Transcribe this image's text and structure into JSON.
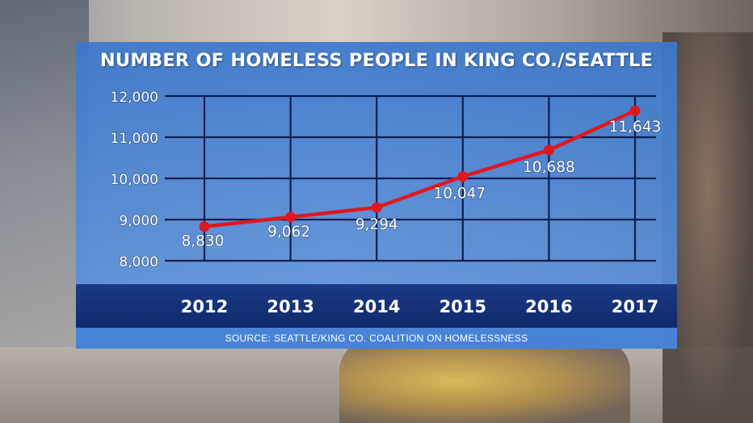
{
  "chart_data": {
    "type": "line",
    "title": "NUMBER OF HOMELESS PEOPLE IN KING CO./SEATTLE",
    "source": "SOURCE: SEATTLE/KING CO. COALITION ON HOMELESSNESS",
    "x": [
      "2012",
      "2013",
      "2014",
      "2015",
      "2016",
      "2017"
    ],
    "values": [
      8830,
      9062,
      9294,
      10047,
      10688,
      11643
    ],
    "value_labels": [
      "8,830",
      "9,062",
      "9,294",
      "10,047",
      "10,688",
      "11,643"
    ],
    "y_ticks": [
      8000,
      9000,
      10000,
      11000,
      12000
    ],
    "y_tick_labels": [
      "8,000",
      "9,000",
      "10,000",
      "11,000",
      "12,000"
    ],
    "ylim": [
      8000,
      12000
    ],
    "grid": true,
    "legend": "none",
    "line_color": "#e0181e",
    "grid_color": "#0d1f4f",
    "text_color": "#ffffff"
  }
}
